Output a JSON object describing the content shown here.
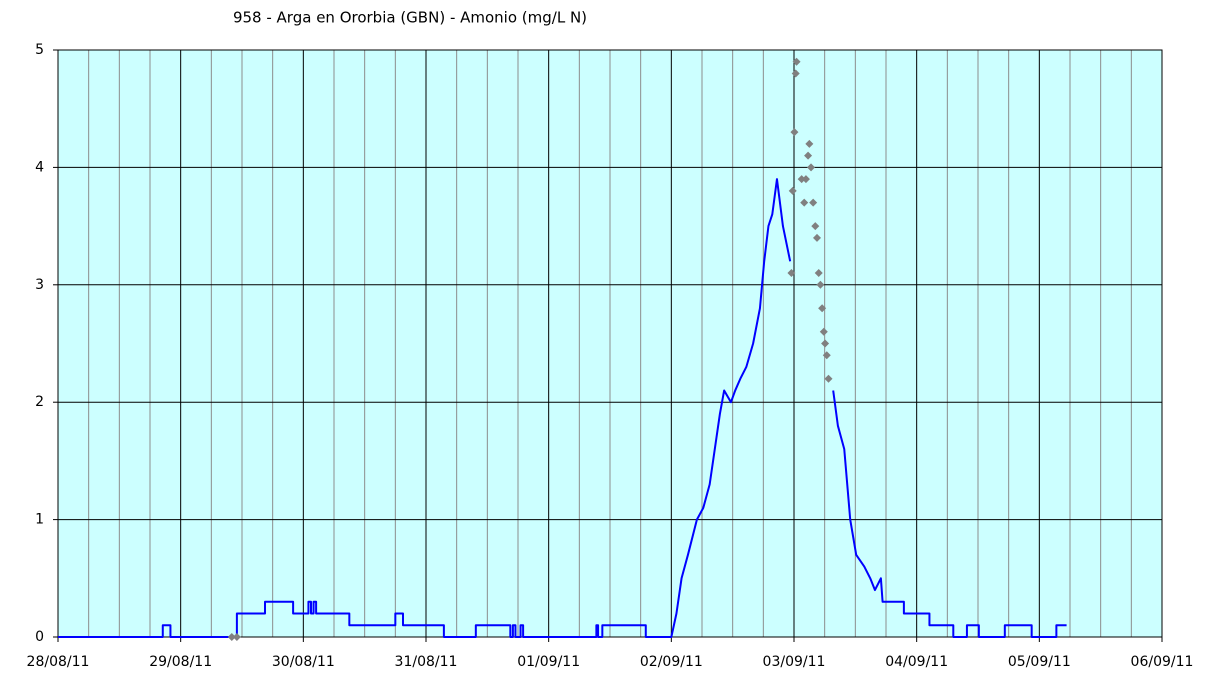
{
  "chart_data": {
    "type": "line",
    "title": "958 - Arga en Ororbia (GBN) - Amonio (mg/L N)",
    "xlim": [
      "2011-08-28T00:00",
      "2011-09-06T00:00"
    ],
    "xticks": [
      {
        "value": "2011-08-28T00:00",
        "label": "28/08/11"
      },
      {
        "value": "2011-08-29T00:00",
        "label": "29/08/11"
      },
      {
        "value": "2011-08-30T00:00",
        "label": "30/08/11"
      },
      {
        "value": "2011-08-31T00:00",
        "label": "31/08/11"
      },
      {
        "value": "2011-09-01T00:00",
        "label": "01/09/11"
      },
      {
        "value": "2011-09-02T00:00",
        "label": "02/09/11"
      },
      {
        "value": "2011-09-03T00:00",
        "label": "03/09/11"
      },
      {
        "value": "2011-09-04T00:00",
        "label": "04/09/11"
      },
      {
        "value": "2011-09-05T00:00",
        "label": "05/09/11"
      },
      {
        "value": "2011-09-06T00:00",
        "label": "06/09/11"
      }
    ],
    "ylim": [
      0,
      5
    ],
    "yticks": [
      0,
      1,
      2,
      3,
      4,
      5
    ],
    "grid": true,
    "plot_background": "#ccffff",
    "series": [
      {
        "type": "line",
        "color": "#0000ff",
        "x": [
          "2011-08-28T00:00",
          "2011-08-28T20:30",
          "2011-08-28T20:30",
          "2011-08-28T22:00",
          "2011-08-28T22:00",
          "2011-08-29T11:00",
          "2011-08-29T11:00",
          "2011-08-29T16:30",
          "2011-08-29T16:30",
          "2011-08-29T22:00",
          "2011-08-29T22:00",
          "2011-08-30T01:00",
          "2011-08-30T01:00",
          "2011-08-30T01:30",
          "2011-08-30T01:30",
          "2011-08-30T02:00",
          "2011-08-30T02:00",
          "2011-08-30T02:30",
          "2011-08-30T02:30",
          "2011-08-30T09:00",
          "2011-08-30T09:00",
          "2011-08-30T18:00",
          "2011-08-30T18:00",
          "2011-08-30T19:30",
          "2011-08-30T19:30",
          "2011-08-31T03:30",
          "2011-08-31T03:30",
          "2011-08-31T09:45",
          "2011-08-31T09:45",
          "2011-08-31T16:30",
          "2011-08-31T16:30",
          "2011-08-31T17:00",
          "2011-08-31T17:00",
          "2011-08-31T17:30",
          "2011-08-31T17:30",
          "2011-08-31T18:30",
          "2011-08-31T18:30",
          "2011-08-31T19:00",
          "2011-08-31T19:00",
          "2011-09-01T09:20",
          "2011-09-01T09:20",
          "2011-09-01T09:40",
          "2011-09-01T09:40",
          "2011-09-01T10:30",
          "2011-09-01T10:30",
          "2011-09-01T19:00",
          "2011-09-01T19:00",
          "2011-09-02T00:00",
          "2011-09-02T01:00",
          "2011-09-02T02:00",
          "2011-09-02T03:15",
          "2011-09-02T05:00",
          "2011-09-02T06:15",
          "2011-09-02T07:30",
          "2011-09-02T08:50",
          "2011-09-02T09:30",
          "2011-09-02T10:20",
          "2011-09-02T11:40",
          "2011-09-02T12:30",
          "2011-09-02T13:30",
          "2011-09-02T14:40",
          "2011-09-02T16:00",
          "2011-09-02T17:20",
          "2011-09-02T18:10",
          "2011-09-02T19:00",
          "2011-09-02T19:45",
          "2011-09-02T20:40",
          "2011-09-02T21:50",
          "2011-09-02T23:15",
          null,
          "2011-09-03T07:40",
          "2011-09-03T08:35",
          "2011-09-03T09:50",
          "2011-09-03T11:00",
          "2011-09-03T12:10",
          "2011-09-03T13:45",
          "2011-09-03T14:55",
          "2011-09-03T15:50",
          "2011-09-03T17:00",
          "2011-09-03T17:20",
          "2011-09-03T21:30",
          "2011-09-03T21:30",
          "2011-09-04T02:30",
          "2011-09-04T02:30",
          "2011-09-04T07:10",
          "2011-09-04T07:10",
          "2011-09-04T09:50",
          "2011-09-04T09:50",
          "2011-09-04T12:10",
          "2011-09-04T12:10",
          "2011-09-04T17:15",
          "2011-09-04T17:15",
          "2011-09-04T22:30",
          "2011-09-04T22:30",
          "2011-09-05T03:20",
          "2011-09-05T03:20",
          "2011-09-05T05:20"
        ],
        "values": [
          0,
          0,
          0.1,
          0.1,
          0,
          0,
          0.2,
          0.2,
          0.3,
          0.3,
          0.2,
          0.2,
          0.3,
          0.3,
          0.2,
          0.2,
          0.3,
          0.3,
          0.2,
          0.2,
          0.1,
          0.1,
          0.2,
          0.2,
          0.1,
          0.1,
          0,
          0,
          0.1,
          0.1,
          0,
          0,
          0.1,
          0.1,
          0,
          0,
          0.1,
          0.1,
          0,
          0,
          0.1,
          0.1,
          0,
          0,
          0.1,
          0.1,
          0,
          0,
          0.2,
          0.5,
          0.7,
          1.0,
          1.1,
          1.3,
          1.7,
          1.9,
          2.1,
          2.0,
          2.1,
          2.2,
          2.3,
          2.5,
          2.8,
          3.2,
          3.5,
          3.6,
          3.9,
          3.5,
          3.2,
          null,
          2.1,
          1.8,
          1.6,
          1.0,
          0.7,
          0.6,
          0.5,
          0.4,
          0.5,
          0.3,
          0.3,
          0.2,
          0.2,
          0.1,
          0.1,
          0,
          0,
          0.1,
          0.1,
          0,
          0,
          0.1,
          0.1,
          0,
          0,
          0.1,
          0.1
        ]
      },
      {
        "type": "scatter",
        "color": "#808080",
        "x": [
          "2011-08-29T10:00",
          "2011-08-29T11:00",
          "2011-09-02T23:30",
          "2011-09-02T23:45",
          "2011-09-03T00:05",
          "2011-09-03T00:20",
          "2011-09-03T00:30",
          "2011-09-03T01:30",
          "2011-09-03T02:00",
          "2011-09-03T02:20",
          "2011-09-03T02:45",
          "2011-09-03T03:00",
          "2011-09-03T03:20",
          "2011-09-03T03:45",
          "2011-09-03T04:10",
          "2011-09-03T04:30",
          "2011-09-03T04:50",
          "2011-09-03T05:10",
          "2011-09-03T05:30",
          "2011-09-03T05:50",
          "2011-09-03T06:05",
          "2011-09-03T06:25",
          "2011-09-03T06:45"
        ],
        "values": [
          0,
          0,
          3.1,
          3.8,
          4.3,
          4.8,
          4.9,
          3.9,
          3.7,
          3.9,
          4.1,
          4.2,
          4.0,
          3.7,
          3.5,
          3.4,
          3.1,
          3.0,
          2.8,
          2.6,
          2.5,
          2.4,
          2.2
        ]
      }
    ]
  }
}
